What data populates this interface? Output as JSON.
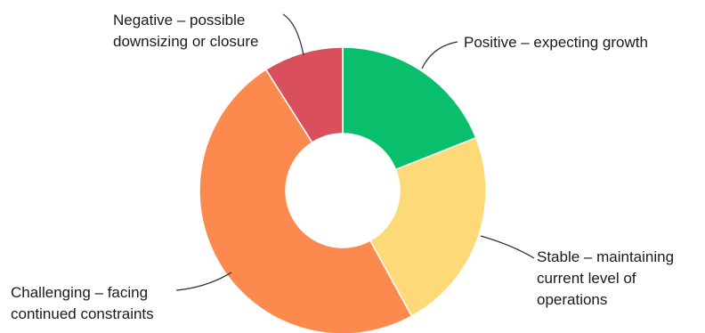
{
  "chart_data": {
    "type": "pie",
    "donut": true,
    "categories": [
      "Positive – expecting growth",
      "Stable – maintaining current level of operations",
      "Challenging – facing continued constraints",
      "Negative – possible downsizing or closure"
    ],
    "values": [
      19,
      23,
      49,
      9
    ],
    "colors": [
      "#0abf6c",
      "#fdd978",
      "#fc8a4f",
      "#d94f5e"
    ],
    "title": "",
    "legend": "none",
    "labels": {
      "positive": [
        "Positive – expecting growth"
      ],
      "stable": [
        "Stable – maintaining",
        "current level of",
        "operations"
      ],
      "challenging": [
        "Challenging – facing",
        "continued constraints"
      ],
      "negative": [
        "Negative – possible",
        "downsizing or closure"
      ]
    }
  }
}
